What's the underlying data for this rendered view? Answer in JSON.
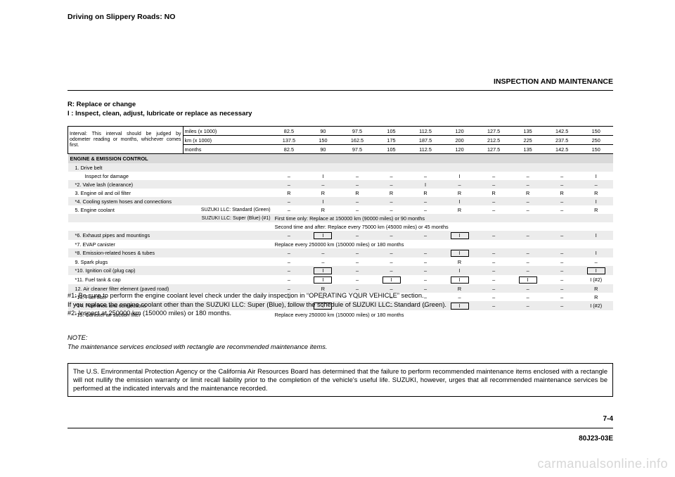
{
  "top_note": "Driving on Slippery Roads: NO",
  "section_title": "INSPECTION AND MAINTENANCE",
  "legend": {
    "line1": "R: Replace or change",
    "line2": " I : Inspect, clean, adjust, lubricate or replace as necessary"
  },
  "header": {
    "interval_text": "Interval: This interval should be judged by odometer reading or months, whichever comes first.",
    "rows": [
      {
        "label": "miles (x 1000)",
        "vals": [
          "82.5",
          "90",
          "97.5",
          "105",
          "112.5",
          "120",
          "127.5",
          "135",
          "142.5",
          "150"
        ]
      },
      {
        "label": "km (x 1000)",
        "vals": [
          "137.5",
          "150",
          "162.5",
          "175",
          "187.5",
          "200",
          "212.5",
          "225",
          "237.5",
          "250"
        ]
      },
      {
        "label": "months",
        "vals": [
          "82.5",
          "90",
          "97.5",
          "105",
          "112.5",
          "120",
          "127.5",
          "135",
          "142.5",
          "150"
        ]
      }
    ]
  },
  "section_label": "ENGINE & EMISSION CONTROL",
  "rows": [
    {
      "label": "1. Drive belt",
      "vals": [
        "",
        "",
        "",
        "",
        "",
        "",
        "",
        "",
        "",
        ""
      ]
    },
    {
      "sub": true,
      "label": "Inspect for damage",
      "vals": [
        "–",
        "I",
        "–",
        "–",
        "–",
        "I",
        "–",
        "–",
        "–",
        "I"
      ]
    },
    {
      "label": "*2. Valve lash (clearance)",
      "vals": [
        "–",
        "–",
        "–",
        "–",
        "I",
        "–",
        "–",
        "–",
        "–",
        "–"
      ]
    },
    {
      "label": "3. Engine oil and oil filter",
      "vals": [
        "R",
        "R",
        "R",
        "R",
        "R",
        "R",
        "R",
        "R",
        "R",
        "R"
      ]
    },
    {
      "label": "*4. Cooling system hoses and connections",
      "vals": [
        "–",
        "I",
        "–",
        "–",
        "–",
        "I",
        "–",
        "–",
        "–",
        "I"
      ]
    },
    {
      "label": "5. Engine coolant",
      "right_text": "SUZUKI LLC: Standard (Green)",
      "vals": [
        "–",
        "R",
        "–",
        "–",
        "–",
        "R",
        "–",
        "–",
        "–",
        "R"
      ]
    },
    {
      "label": "",
      "right_text": "SUZUKI LLC: Super (Blue) (#1)",
      "span_text": "First time only: Replace at 150000 km (90000 miles) or 90 months"
    },
    {
      "label": "",
      "right_text": "",
      "span_text": "Second time and after: Replace every 75000 km (45000 miles) or 45 months"
    },
    {
      "label": "*6. Exhaust pipes and mountings",
      "vals": [
        "–",
        "",
        "–",
        "–",
        "–",
        "",
        "–",
        "–",
        "–",
        "I"
      ],
      "boxed": [
        1,
        5
      ],
      "box_val": "I"
    },
    {
      "label": "*7. EVAP canister",
      "span_text": "Replace every 250000 km (150000 miles) or 180 months"
    },
    {
      "label": "*8. Emission-related hoses & tubes",
      "vals": [
        "–",
        "–",
        "–",
        "–",
        "–",
        "",
        "–",
        "–",
        "–",
        "I"
      ],
      "boxed": [
        5
      ],
      "box_val": "I"
    },
    {
      "label": "9. Spark plugs",
      "vals": [
        "–",
        "–",
        "–",
        "–",
        "–",
        "R",
        "–",
        "–",
        "–",
        "–"
      ]
    },
    {
      "label": "*10. Ignition coil (plug cap)",
      "vals": [
        "–",
        "",
        "–",
        "–",
        "–",
        "I",
        "–",
        "–",
        "–",
        ""
      ],
      "boxed": [
        1,
        9
      ],
      "box_val": "I"
    },
    {
      "label": "*11. Fuel tank & cap",
      "vals": [
        "–",
        "",
        "–",
        "",
        "–",
        "",
        "–",
        "",
        "–",
        "I (#2)"
      ],
      "boxed": [
        1,
        3,
        5,
        7
      ],
      "box_val": "I"
    },
    {
      "label": "12. Air cleaner filter element (paved road)",
      "vals": [
        "–",
        "R",
        "–",
        "–",
        "–",
        "R",
        "–",
        "–",
        "–",
        "R"
      ]
    },
    {
      "label": "*13. Fuel filter",
      "vals": [
        "–",
        "–",
        "–",
        "–",
        "–",
        "–",
        "–",
        "–",
        "–",
        "R"
      ]
    },
    {
      "label": "*14. Fuel lines and connections",
      "vals": [
        "–",
        "",
        "–",
        "–",
        "–",
        "",
        "–",
        "–",
        "–",
        "I (#2)"
      ],
      "boxed": [
        1,
        5
      ],
      "box_val": "I"
    },
    {
      "label": "*15. Canister air suction filter",
      "span_text": "Replace every 250000 km (150000 miles) or 180 months"
    }
  ],
  "footnotes": {
    "l1": "#1: Be sure to perform the engine coolant level check under the daily inspection in “OPERATING YOUR VEHICLE” section.",
    "l2": "      If you replace the engine coolant other than the SUZUKI LLC: Super (Blue), follow the schedule of SUZUKI LLC: Standard (Green).",
    "l3": "#2: Inspect at 250000 km (150000 miles) or 180 months."
  },
  "note": {
    "title": "NOTE:",
    "text": "The maintenance services enclosed with rectangle are recommended maintenance items."
  },
  "epa_box": "The U.S. Environmental Protection Agency or the California Air Resources Board has determined that the failure to perform recommended maintenance items enclosed with a rectangle will not nullify the emission warranty or limit recall liability prior to the completion of the vehicle's useful life. SUZUKI, however, urges that all recommended maintenance services be performed at the indicated intervals and the maintenance recorded.",
  "page_num": "7-4",
  "doc_id": "80J23-03E",
  "watermark": "carmanualsonline.info",
  "colors": {
    "section_bg": "#d9d9d9",
    "row_shade": "#ececec"
  }
}
